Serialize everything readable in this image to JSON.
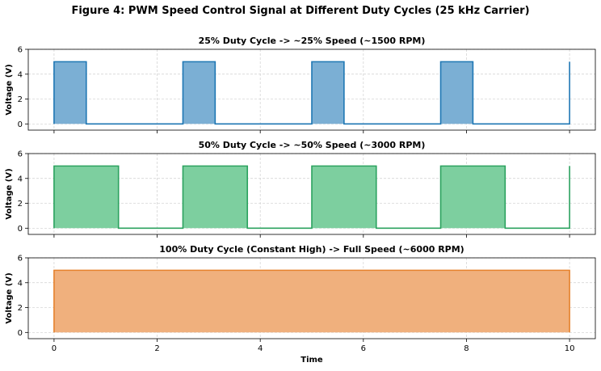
{
  "figure": {
    "title": "Figure 4: PWM Speed Control Signal at Different Duty Cycles (25 kHz Carrier)",
    "xlabel": "Time"
  },
  "chart_data": [
    {
      "type": "area",
      "title": "25% Duty Cycle  ->  ~25% Speed (~1500 RPM)",
      "xlabel": "",
      "ylabel": "Voltage (V)",
      "xlim": [
        -0.5,
        10.5
      ],
      "ylim": [
        -0.5,
        6
      ],
      "xticks": [
        0,
        2,
        4,
        6,
        8,
        10
      ],
      "yticks": [
        0,
        2,
        4,
        6
      ],
      "grid": true,
      "color": "#1f77b4",
      "fill_color": "#7bafd4",
      "period": 2.5,
      "duty": 0.25,
      "high": 5,
      "low": 0,
      "x": [
        0,
        0,
        0.625,
        0.625,
        2.5,
        2.5,
        3.125,
        3.125,
        5,
        5,
        5.625,
        5.625,
        7.5,
        7.5,
        8.125,
        8.125,
        10,
        10
      ],
      "y": [
        0,
        5,
        5,
        0,
        0,
        5,
        5,
        0,
        0,
        5,
        5,
        0,
        0,
        5,
        5,
        0,
        0,
        5
      ]
    },
    {
      "type": "area",
      "title": "50% Duty Cycle  ->  ~50% Speed (~3000 RPM)",
      "xlabel": "",
      "ylabel": "Voltage (V)",
      "xlim": [
        -0.5,
        10.5
      ],
      "ylim": [
        -0.5,
        6
      ],
      "xticks": [
        0,
        2,
        4,
        6,
        8,
        10
      ],
      "yticks": [
        0,
        2,
        4,
        6
      ],
      "grid": true,
      "color": "#2ca25f",
      "fill_color": "#7dcf9f",
      "period": 2.5,
      "duty": 0.5,
      "high": 5,
      "low": 0,
      "x": [
        0,
        0,
        1.25,
        1.25,
        2.5,
        2.5,
        3.75,
        3.75,
        5,
        5,
        6.25,
        6.25,
        7.5,
        7.5,
        8.75,
        8.75,
        10,
        10
      ],
      "y": [
        0,
        5,
        5,
        0,
        0,
        5,
        5,
        0,
        0,
        5,
        5,
        0,
        0,
        5,
        5,
        0,
        0,
        5
      ]
    },
    {
      "type": "area",
      "title": "100% Duty Cycle (Constant High)  ->  Full Speed (~6000 RPM)",
      "xlabel": "Time",
      "ylabel": "Voltage (V)",
      "xlim": [
        -0.5,
        10.5
      ],
      "ylim": [
        -0.5,
        6
      ],
      "xticks": [
        0,
        2,
        4,
        6,
        8,
        10
      ],
      "yticks": [
        0,
        2,
        4,
        6
      ],
      "grid": true,
      "color": "#e6822e",
      "fill_color": "#f0b07d",
      "period": 2.5,
      "duty": 1.0,
      "high": 5,
      "low": 0,
      "x": [
        0,
        0,
        10,
        10
      ],
      "y": [
        0,
        5,
        5,
        0
      ]
    }
  ]
}
